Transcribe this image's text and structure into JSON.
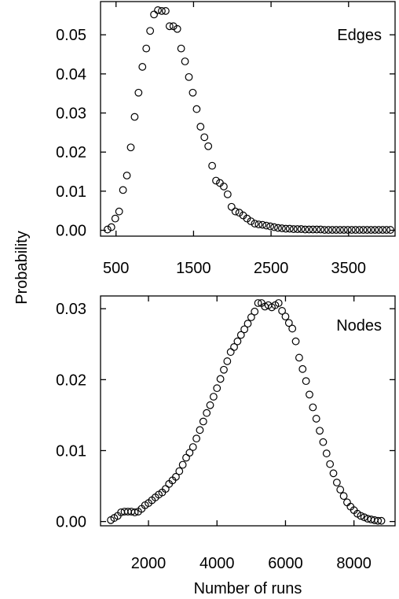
{
  "ylabel": "Probability",
  "chart_data": [
    {
      "type": "scatter",
      "panel_label": "Edges",
      "xlabel": "",
      "ylabel": "Probability",
      "xlim": [
        300,
        4100
      ],
      "ylim": [
        -0.0015,
        0.0585
      ],
      "xticks": [
        500,
        1500,
        2500,
        3500
      ],
      "yticks": [
        0.0,
        0.01,
        0.02,
        0.03,
        0.04,
        0.05
      ],
      "ytick_labels": [
        "0.00",
        "0.01",
        "0.02",
        "0.03",
        "0.04",
        "0.05"
      ],
      "xtick_labels": [
        "500",
        "1500",
        "2500",
        "3500"
      ],
      "series": [
        {
          "marker": "open-circle",
          "x": [
            390,
            440,
            490,
            540,
            590,
            640,
            690,
            740,
            790,
            840,
            890,
            940,
            990,
            1040,
            1090,
            1140,
            1190,
            1240,
            1290,
            1340,
            1390,
            1440,
            1490,
            1540,
            1590,
            1640,
            1690,
            1740,
            1790,
            1840,
            1890,
            1940,
            1990,
            2040,
            2090,
            2140,
            2190,
            2240,
            2290,
            2340,
            2390,
            2440,
            2490,
            2540,
            2590,
            2640,
            2690,
            2740,
            2790,
            2840,
            2890,
            2940,
            2990,
            3040,
            3090,
            3140,
            3190,
            3240,
            3290,
            3340,
            3390,
            3440,
            3490,
            3540,
            3590,
            3640,
            3690,
            3740,
            3790,
            3840,
            3890,
            3940,
            3990,
            4040
          ],
          "y": [
            0.0002,
            0.0008,
            0.003,
            0.0048,
            0.0103,
            0.014,
            0.0212,
            0.029,
            0.0352,
            0.0418,
            0.0465,
            0.051,
            0.0552,
            0.0563,
            0.0561,
            0.0561,
            0.0522,
            0.0522,
            0.0515,
            0.0465,
            0.0432,
            0.0392,
            0.0352,
            0.031,
            0.0265,
            0.0238,
            0.0215,
            0.0165,
            0.0127,
            0.0121,
            0.0112,
            0.0092,
            0.006,
            0.0048,
            0.0045,
            0.0038,
            0.003,
            0.0023,
            0.0017,
            0.0015,
            0.0014,
            0.0012,
            0.001,
            0.0008,
            0.0006,
            0.0005,
            0.0004,
            0.0004,
            0.0003,
            0.0003,
            0.0003,
            0.0002,
            0.0002,
            0.0002,
            0.0002,
            0.0002,
            0.0001,
            0.0001,
            0.0001,
            0.0001,
            0.0001,
            0.0001,
            0.0001,
            0.0001,
            0.0001,
            0.0001,
            0.0001,
            0.0001,
            0.0001,
            0.0001,
            0.0001,
            0.0001,
            0.0001,
            0.0001
          ]
        }
      ]
    },
    {
      "type": "scatter",
      "panel_label": "Nodes",
      "xlabel": "Number of runs",
      "ylabel": "Probability",
      "xlim": [
        600,
        9200
      ],
      "ylim": [
        -0.0006,
        0.0318
      ],
      "xticks": [
        2000,
        4000,
        6000,
        8000
      ],
      "yticks": [
        0.0,
        0.01,
        0.02,
        0.03
      ],
      "ytick_labels": [
        "0.00",
        "0.01",
        "0.02",
        "0.03"
      ],
      "xtick_labels": [
        "2000",
        "4000",
        "6000",
        "8000"
      ],
      "series": [
        {
          "marker": "open-circle",
          "x": [
            900,
            1000,
            1100,
            1200,
            1300,
            1400,
            1500,
            1600,
            1700,
            1800,
            1900,
            2000,
            2100,
            2200,
            2300,
            2400,
            2500,
            2600,
            2700,
            2800,
            2900,
            3000,
            3100,
            3200,
            3300,
            3400,
            3500,
            3600,
            3700,
            3800,
            3900,
            4000,
            4100,
            4200,
            4300,
            4400,
            4500,
            4600,
            4700,
            4800,
            4900,
            5000,
            5100,
            5200,
            5300,
            5400,
            5500,
            5600,
            5700,
            5800,
            5900,
            6000,
            6100,
            6200,
            6300,
            6400,
            6500,
            6600,
            6700,
            6800,
            6900,
            7000,
            7100,
            7200,
            7300,
            7400,
            7500,
            7600,
            7700,
            7800,
            7900,
            8000,
            8100,
            8200,
            8300,
            8400,
            8500,
            8600,
            8700,
            8800
          ],
          "y": [
            0.0002,
            0.0005,
            0.0008,
            0.0013,
            0.0014,
            0.0014,
            0.0014,
            0.0013,
            0.0014,
            0.0018,
            0.0023,
            0.0026,
            0.003,
            0.0034,
            0.0038,
            0.0041,
            0.0046,
            0.0053,
            0.0058,
            0.0063,
            0.0071,
            0.008,
            0.009,
            0.0097,
            0.0105,
            0.0117,
            0.0129,
            0.0141,
            0.0153,
            0.0164,
            0.0176,
            0.0188,
            0.0201,
            0.0214,
            0.0226,
            0.0239,
            0.0246,
            0.0254,
            0.0263,
            0.0271,
            0.0279,
            0.0288,
            0.0296,
            0.0308,
            0.0308,
            0.0303,
            0.0305,
            0.0302,
            0.0305,
            0.0308,
            0.0297,
            0.0289,
            0.028,
            0.0272,
            0.0254,
            0.0231,
            0.0215,
            0.0198,
            0.0179,
            0.0161,
            0.0145,
            0.0128,
            0.0112,
            0.0096,
            0.0081,
            0.0068,
            0.0055,
            0.0045,
            0.0036,
            0.0027,
            0.0021,
            0.0016,
            0.0011,
            0.0008,
            0.0006,
            0.0004,
            0.0003,
            0.0002,
            0.0001,
            0.0001
          ]
        }
      ]
    }
  ]
}
